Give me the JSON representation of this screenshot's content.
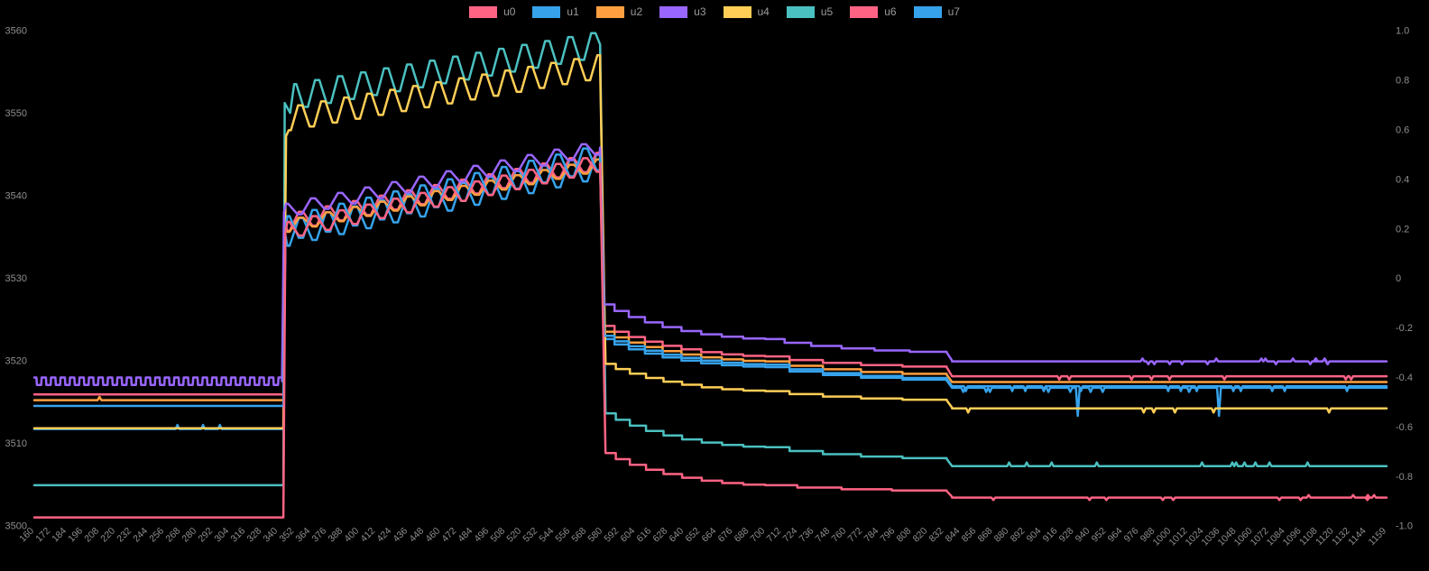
{
  "page": {
    "background": "#000000",
    "text_color": "#8e8e8e"
  },
  "legend": {
    "items": [
      {
        "label": "u0",
        "color": "#FF6384"
      },
      {
        "label": "u1",
        "color": "#36A2EB"
      },
      {
        "label": "u2",
        "color": "#FF9F40"
      },
      {
        "label": "u3",
        "color": "#9966FF"
      },
      {
        "label": "u4",
        "color": "#FFCE56"
      },
      {
        "label": "u5",
        "color": "#4BC0C0"
      },
      {
        "label": "u6",
        "color": "#FF6384"
      },
      {
        "label": "u7",
        "color": "#36A2EB"
      }
    ]
  },
  "chart_data": {
    "type": "line",
    "title": "",
    "xlabel": "",
    "ylabel": "",
    "grid": false,
    "legend_position": "top-center",
    "x_axis": {
      "min": 160,
      "max": 1159,
      "label_rotation": 45,
      "ticks": [
        160,
        172,
        184,
        196,
        208,
        220,
        232,
        244,
        256,
        268,
        280,
        292,
        304,
        316,
        328,
        340,
        352,
        364,
        376,
        388,
        400,
        412,
        424,
        436,
        448,
        460,
        472,
        484,
        496,
        508,
        520,
        532,
        544,
        556,
        568,
        580,
        592,
        604,
        616,
        628,
        640,
        652,
        664,
        676,
        688,
        700,
        712,
        724,
        736,
        748,
        760,
        772,
        784,
        796,
        808,
        820,
        832,
        844,
        856,
        868,
        880,
        892,
        904,
        916,
        928,
        940,
        952,
        964,
        976,
        988,
        1000,
        1012,
        1024,
        1036,
        1048,
        1060,
        1072,
        1084,
        1096,
        1108,
        1120,
        1132,
        1144,
        1159
      ]
    },
    "y_axis_left": {
      "min": 3500,
      "max": 3560,
      "ticks": [
        3560,
        3550,
        3540,
        3530,
        3520,
        3510,
        3500
      ]
    },
    "y_axis_right": {
      "min": -1,
      "max": 1,
      "ticks": [
        "1.0",
        "0.8",
        "0.6",
        "0.4",
        "0.2",
        "0",
        "-0.2",
        "-0.4",
        "-0.6",
        "-0.8",
        "-1.0"
      ]
    },
    "events": {
      "step_up_x": 344,
      "step_down_x": 580,
      "second_step_x": 836
    },
    "series": [
      {
        "name": "u0",
        "color": "#FF6384",
        "axis": "left",
        "z": 8,
        "segments": [
          {
            "t": "flat",
            "x": [
              160,
              344
            ],
            "y": 3501.0
          },
          {
            "t": "pts",
            "p": [
              [
                345.5,
                3535.5
              ]
            ]
          },
          {
            "t": "zig",
            "x": [
              347,
              578
            ],
            "y": [
              3535.8,
              3543.9
            ],
            "amp": 1.0,
            "period": 20,
            "s": 1
          },
          {
            "t": "pts",
            "p": [
              [
                582,
                3508.8
              ]
            ]
          },
          {
            "t": "decay",
            "x": [
              582,
              700
            ],
            "y": [
              3508.8,
              3504.9
            ],
            "treads": 9
          },
          {
            "t": "decay",
            "x": [
              700,
              834
            ],
            "y": [
              3504.9,
              3504.2
            ],
            "treads": 4
          },
          {
            "t": "pts",
            "p": [
              [
                838,
                3503.5
              ]
            ]
          },
          {
            "t": "flat",
            "x": [
              838,
              1159
            ],
            "y": 3503.4,
            "spikes": [
              {
                "n": 8,
                "a": -0.3
              },
              {
                "n": 4,
                "a": 0.3,
                "xr": [
                  1060,
                  1150
                ]
              }
            ]
          }
        ]
      },
      {
        "name": "u1",
        "color": "#36A2EB",
        "axis": "left",
        "z": 7,
        "segments": [
          {
            "t": "flat",
            "x": [
              160,
              344
            ],
            "y": 3514.5
          },
          {
            "t": "pts",
            "p": [
              [
                345.5,
                3535.8
              ]
            ]
          },
          {
            "t": "zig",
            "x": [
              347,
              578
            ],
            "y": [
              3536.0,
              3544.6
            ],
            "amp": 1.5,
            "period": 20,
            "s": 1
          },
          {
            "t": "pts",
            "p": [
              [
                581,
                3523.0
              ]
            ]
          },
          {
            "t": "decay",
            "x": [
              581,
              700
            ],
            "y": [
              3523.0,
              3519.5
            ],
            "treads": 9
          },
          {
            "t": "decay",
            "x": [
              700,
              834
            ],
            "y": [
              3519.5,
              3517.8
            ],
            "treads": 5
          },
          {
            "t": "pts",
            "p": [
              [
                838,
                3516.9
              ]
            ]
          },
          {
            "t": "flat",
            "x": [
              838,
              1159
            ],
            "y": 3516.9,
            "spikes": [
              {
                "n": 13,
                "a": -0.6
              }
            ]
          }
        ]
      },
      {
        "name": "u2",
        "color": "#FF9F40",
        "axis": "left",
        "z": 6,
        "segments": [
          {
            "t": "flat",
            "x": [
              160,
              344
            ],
            "y": 3515.2,
            "spikes": [
              {
                "n": 1,
                "a": 0.4,
                "xr": [
                  205,
                  215
                ]
              }
            ]
          },
          {
            "t": "pts",
            "p": [
              [
                345.5,
                3536.1
              ]
            ]
          },
          {
            "t": "zig",
            "x": [
              347,
              578
            ],
            "y": [
              3536.3,
              3543.7
            ],
            "amp": 0.7,
            "period": 20,
            "s": -1
          },
          {
            "t": "pts",
            "p": [
              [
                581,
                3523.5
              ]
            ]
          },
          {
            "t": "decay",
            "x": [
              581,
              700
            ],
            "y": [
              3523.5,
              3519.9
            ],
            "treads": 9
          },
          {
            "t": "decay",
            "x": [
              700,
              834
            ],
            "y": [
              3519.9,
              3518.3
            ],
            "treads": 5
          },
          {
            "t": "pts",
            "p": [
              [
                838,
                3517.4
              ]
            ]
          },
          {
            "t": "flat",
            "x": [
              838,
              1159
            ],
            "y": 3517.4
          }
        ]
      },
      {
        "name": "u3",
        "color": "#9966FF",
        "axis": "left",
        "z": 5,
        "segments": [
          {
            "t": "zig",
            "x": [
              160,
              343
            ],
            "y": [
              3517.5,
              3517.5
            ],
            "amp": 0.45,
            "period": 7,
            "s": 1
          },
          {
            "t": "pts",
            "p": [
              [
                344.5,
                3538.0
              ]
            ]
          },
          {
            "t": "zig",
            "x": [
              346,
              578
            ],
            "y": [
              3538.2,
              3545.8
            ],
            "amp": 0.8,
            "period": 20,
            "s": 1
          },
          {
            "t": "pts",
            "p": [
              [
                581,
                3526.8
              ]
            ]
          },
          {
            "t": "decay",
            "x": [
              581,
              700
            ],
            "y": [
              3526.8,
              3522.6
            ],
            "treads": 9
          },
          {
            "t": "decay",
            "x": [
              700,
              834
            ],
            "y": [
              3522.6,
              3521.0
            ],
            "treads": 6
          },
          {
            "t": "pts",
            "p": [
              [
                838,
                3520.0
              ]
            ]
          },
          {
            "t": "flat",
            "x": [
              838,
              1159
            ],
            "y": 3519.9,
            "spikes": [
              {
                "n": 8,
                "a": 0.35,
                "xr": [
                  940,
                  1140
                ]
              },
              {
                "n": 8,
                "a": -0.35,
                "xr": [
                  950,
                  1150
                ]
              }
            ]
          }
        ]
      },
      {
        "name": "u4",
        "color": "#FFCE56",
        "axis": "left",
        "z": 4,
        "segments": [
          {
            "t": "flat",
            "x": [
              160,
              344
            ],
            "y": 3511.8
          },
          {
            "t": "pts",
            "p": [
              [
                346,
                3547.2
              ]
            ]
          },
          {
            "t": "zig",
            "x": [
              348,
              578
            ],
            "y": [
              3549.3,
              3555.6
            ],
            "amp": 1.4,
            "period": 17,
            "s": -1
          },
          {
            "t": "pts",
            "p": [
              [
                582,
                3519.6
              ]
            ]
          },
          {
            "t": "decay",
            "x": [
              582,
              700
            ],
            "y": [
              3519.6,
              3516.3
            ],
            "treads": 9
          },
          {
            "t": "decay",
            "x": [
              700,
              834
            ],
            "y": [
              3516.3,
              3515.2
            ],
            "treads": 5
          },
          {
            "t": "pts",
            "p": [
              [
                838,
                3514.3
              ]
            ]
          },
          {
            "t": "flat",
            "x": [
              838,
              1159
            ],
            "y": 3514.2,
            "spikes": [
              {
                "n": 6,
                "a": -0.5
              }
            ]
          }
        ]
      },
      {
        "name": "u5",
        "color": "#4BC0C0",
        "axis": "left",
        "z": 3,
        "segments": [
          {
            "t": "flat",
            "x": [
              160,
              344
            ],
            "y": 3504.9
          },
          {
            "t": "pts",
            "p": [
              [
                345,
                3551.2
              ],
              [
                349,
                3550.0
              ]
            ]
          },
          {
            "t": "zig",
            "x": [
              352,
              578
            ],
            "y": [
              3552.0,
              3558.3
            ],
            "amp": 1.5,
            "period": 17,
            "s": 1
          },
          {
            "t": "pts",
            "p": [
              [
                582,
                3513.6
              ]
            ]
          },
          {
            "t": "decay",
            "x": [
              582,
              700
            ],
            "y": [
              3513.6,
              3509.5
            ],
            "treads": 9
          },
          {
            "t": "decay",
            "x": [
              700,
              834
            ],
            "y": [
              3509.5,
              3508.1
            ],
            "treads": 5
          },
          {
            "t": "pts",
            "p": [
              [
                838,
                3507.2
              ]
            ]
          },
          {
            "t": "flat",
            "x": [
              838,
              1159
            ],
            "y": 3507.2,
            "spikes": [
              {
                "n": 11,
                "a": 0.45
              }
            ]
          }
        ]
      },
      {
        "name": "u6",
        "color": "#FF6384",
        "axis": "left",
        "z": 2,
        "segments": [
          {
            "t": "flat",
            "x": [
              160,
              344
            ],
            "y": 3515.9
          },
          {
            "t": "pts",
            "p": [
              [
                345.5,
                3536.5
              ]
            ]
          },
          {
            "t": "zig",
            "x": [
              347,
              578
            ],
            "y": [
              3536.7,
              3544.2
            ],
            "amp": 1.0,
            "period": 20,
            "s": -1
          },
          {
            "t": "pts",
            "p": [
              [
                581,
                3524.2
              ]
            ]
          },
          {
            "t": "decay",
            "x": [
              581,
              700
            ],
            "y": [
              3524.2,
              3520.5
            ],
            "treads": 9
          },
          {
            "t": "decay",
            "x": [
              700,
              834
            ],
            "y": [
              3520.5,
              3519.2
            ],
            "treads": 5
          },
          {
            "t": "pts",
            "p": [
              [
                838,
                3518.1
              ]
            ]
          },
          {
            "t": "flat",
            "x": [
              838,
              1159
            ],
            "y": 3518.1,
            "spikes": [
              {
                "n": 8,
                "a": -0.4
              }
            ]
          }
        ]
      },
      {
        "name": "u7",
        "color": "#36A2EB",
        "axis": "left",
        "z": 1,
        "segments": [
          {
            "t": "flat",
            "x": [
              160,
              344
            ],
            "y": 3511.7,
            "spikes": [
              {
                "n": 3,
                "a": 0.5,
                "xr": [
                  265,
                  300
                ]
              }
            ]
          },
          {
            "t": "pts",
            "p": [
              [
                345.5,
                3535.2
              ]
            ]
          },
          {
            "t": "zig",
            "x": [
              347,
              578
            ],
            "y": [
              3535.4,
              3543.6
            ],
            "amp": 1.5,
            "period": 20,
            "s": -1
          },
          {
            "t": "pts",
            "p": [
              [
                581,
                3522.6
              ]
            ]
          },
          {
            "t": "decay",
            "x": [
              581,
              700
            ],
            "y": [
              3522.6,
              3519.2
            ],
            "treads": 9
          },
          {
            "t": "decay",
            "x": [
              700,
              834
            ],
            "y": [
              3519.2,
              3517.6
            ],
            "treads": 5
          },
          {
            "t": "pts",
            "p": [
              [
                838,
                3516.7
              ]
            ]
          },
          {
            "t": "flat",
            "x": [
              838,
              1159
            ],
            "y": 3516.7,
            "spikes": [
              {
                "n": 8,
                "a": -0.5
              },
              {
                "n": 2,
                "a": -3.4,
                "xr": [
                  880,
                  1090
                ]
              }
            ]
          }
        ]
      }
    ]
  }
}
